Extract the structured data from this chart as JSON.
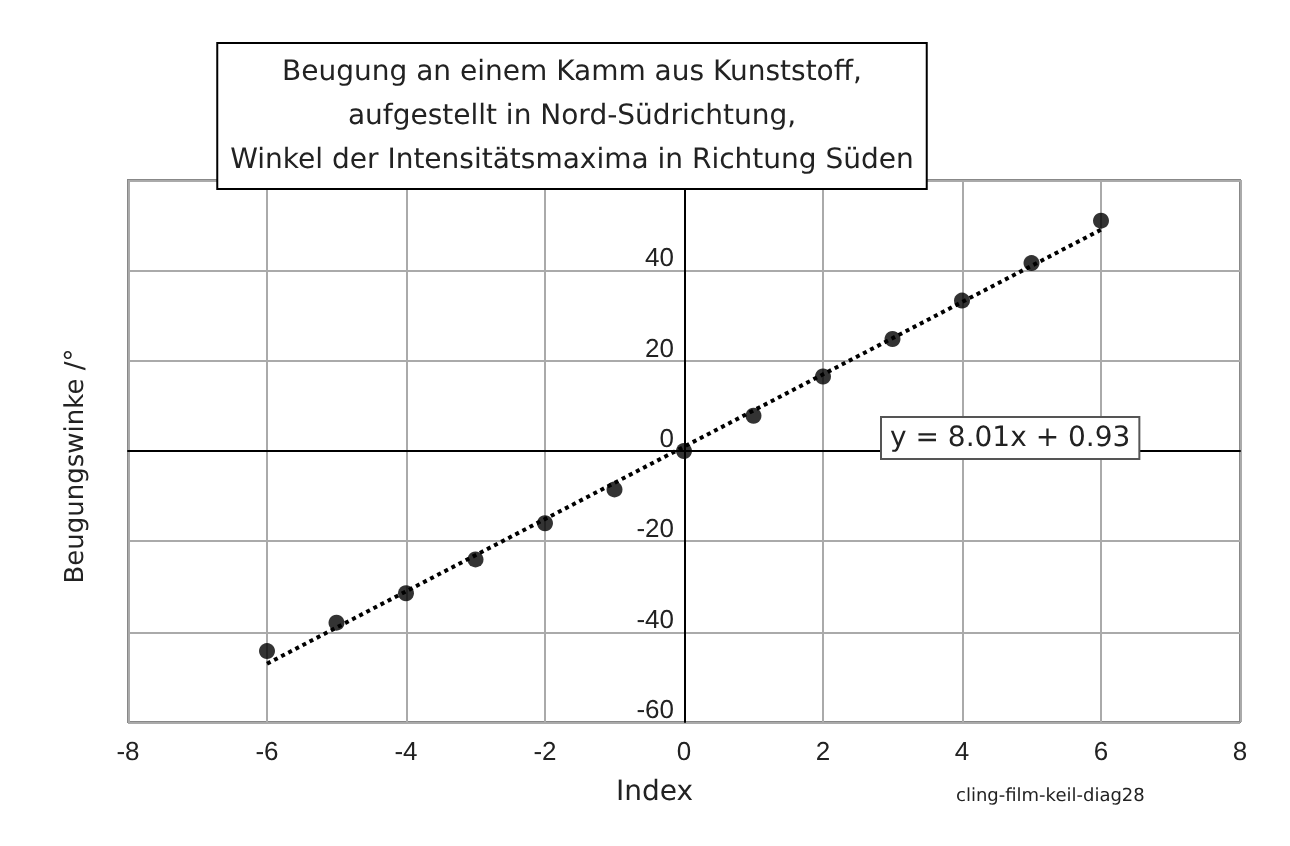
{
  "chart_data": {
    "type": "scatter",
    "title": "Beugung an einem Kamm aus Kunststoff,\naufgestellt in Nord-Südrichtung,\nWinkel der Intensitätsmaxima in Richtung Süden",
    "xlabel": "Index",
    "ylabel": "Beugungswinke /°",
    "annotations": [
      "y = 8.01x + 0.93",
      "cling-film-keil-diag28"
    ],
    "x": [
      -6,
      -5,
      -4,
      -3,
      -2,
      -1,
      0,
      1,
      2,
      3,
      4,
      5,
      6
    ],
    "series": [
      {
        "color": "#000000",
        "marker": "circle",
        "values": [
          -44.3,
          -38,
          -31.5,
          -24,
          -16,
          -8.5,
          0,
          7.8,
          16.5,
          24.8,
          33.3,
          41.6,
          51
        ]
      },
      {
        "type": "line",
        "color": "#000000",
        "marker": "none",
        "line_style": "dotted",
        "x": [
          -6,
          6
        ],
        "values": [
          -47.1,
          49.0
        ]
      }
    ],
    "xlim": [
      -8,
      8
    ],
    "xticks": [
      -8,
      -6,
      -4,
      -2,
      0,
      2,
      4,
      6,
      8
    ],
    "ylim": [
      -60,
      60
    ],
    "yticks": [
      -60,
      -40,
      -20,
      0,
      20,
      40
    ],
    "grid": true
  }
}
